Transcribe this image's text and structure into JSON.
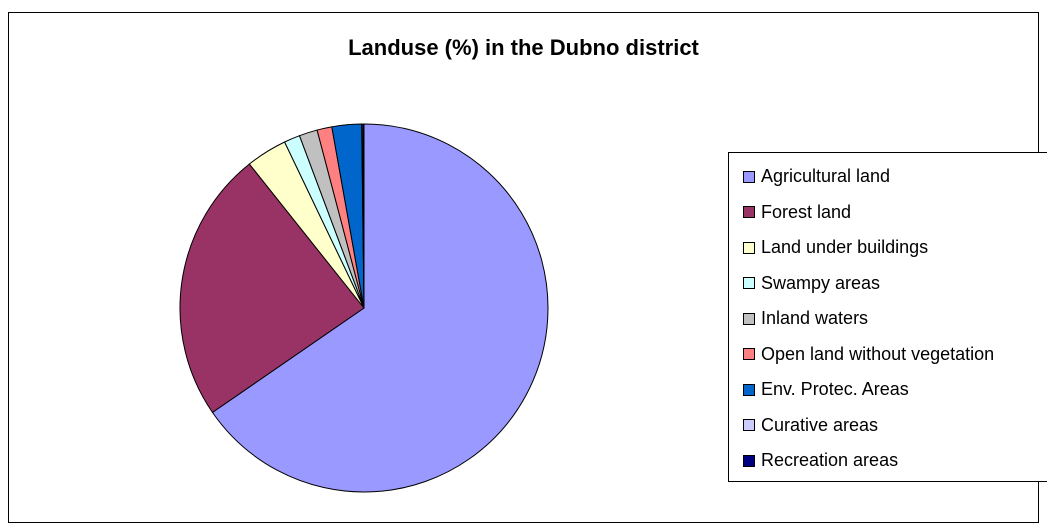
{
  "chart_data": {
    "type": "pie",
    "title": "Landuse (%) in the Dubno district",
    "legend_position": "right",
    "slices": [
      {
        "label": "Agricultural land",
        "value": 65.4,
        "color": "#9999ff"
      },
      {
        "label": "Forest land",
        "value": 23.9,
        "color": "#993366"
      },
      {
        "label": "Land under buildings",
        "value": 3.6,
        "color": "#ffffcc"
      },
      {
        "label": "Swampy areas",
        "value": 1.4,
        "color": "#ccffff"
      },
      {
        "label": "Inland waters",
        "value": 1.6,
        "color": "#c0c0c0"
      },
      {
        "label": "Open land without vegetation",
        "value": 1.3,
        "color": "#ff8080"
      },
      {
        "label": "Env. Protec. Areas",
        "value": 2.6,
        "color": "#0066cc"
      },
      {
        "label": "Curative areas",
        "value": 0.1,
        "color": "#ccccff"
      },
      {
        "label": "Recreation areas",
        "value": 0.1,
        "color": "#000080"
      }
    ]
  }
}
